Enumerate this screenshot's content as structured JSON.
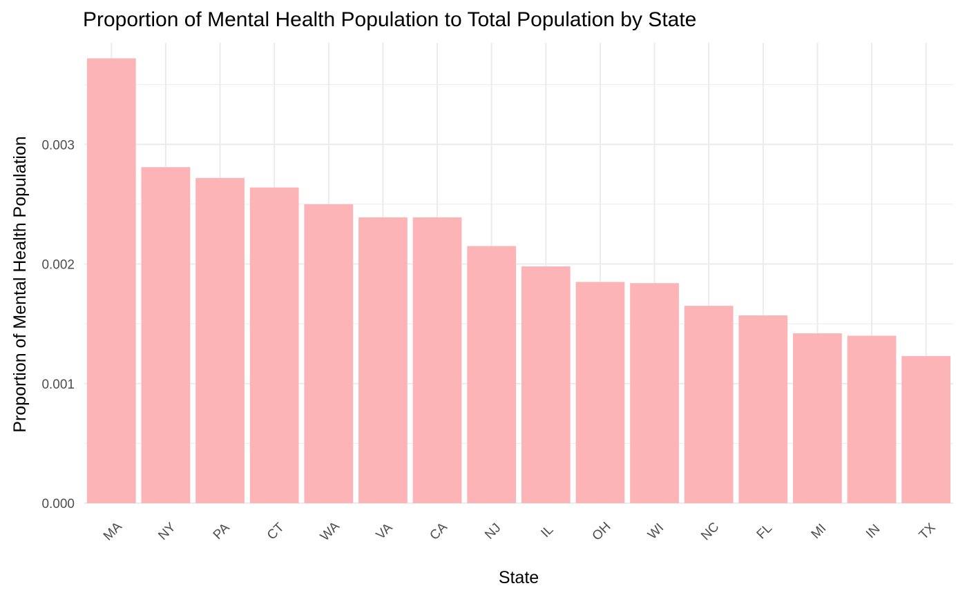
{
  "chart_data": {
    "type": "bar",
    "title": "Proportion of Mental Health Population to Total Population by State",
    "xlabel": "State",
    "ylabel": "Proportion of Mental Health Population",
    "categories": [
      "MA",
      "NY",
      "PA",
      "CT",
      "WA",
      "VA",
      "CA",
      "NJ",
      "IL",
      "OH",
      "WI",
      "NC",
      "FL",
      "MI",
      "IN",
      "TX"
    ],
    "values": [
      0.00372,
      0.00281,
      0.00272,
      0.00264,
      0.0025,
      0.00239,
      0.00239,
      0.00215,
      0.00198,
      0.00185,
      0.00184,
      0.00165,
      0.00157,
      0.00142,
      0.0014,
      0.00123
    ],
    "ylim": [
      0,
      0.00385
    ],
    "yticks": [
      0,
      0.001,
      0.002,
      0.003
    ],
    "ytick_labels": [
      "0.000",
      "0.001",
      "0.002",
      "0.003"
    ],
    "bar_color": "#fcb4b7",
    "grid": true,
    "legend": "none"
  }
}
